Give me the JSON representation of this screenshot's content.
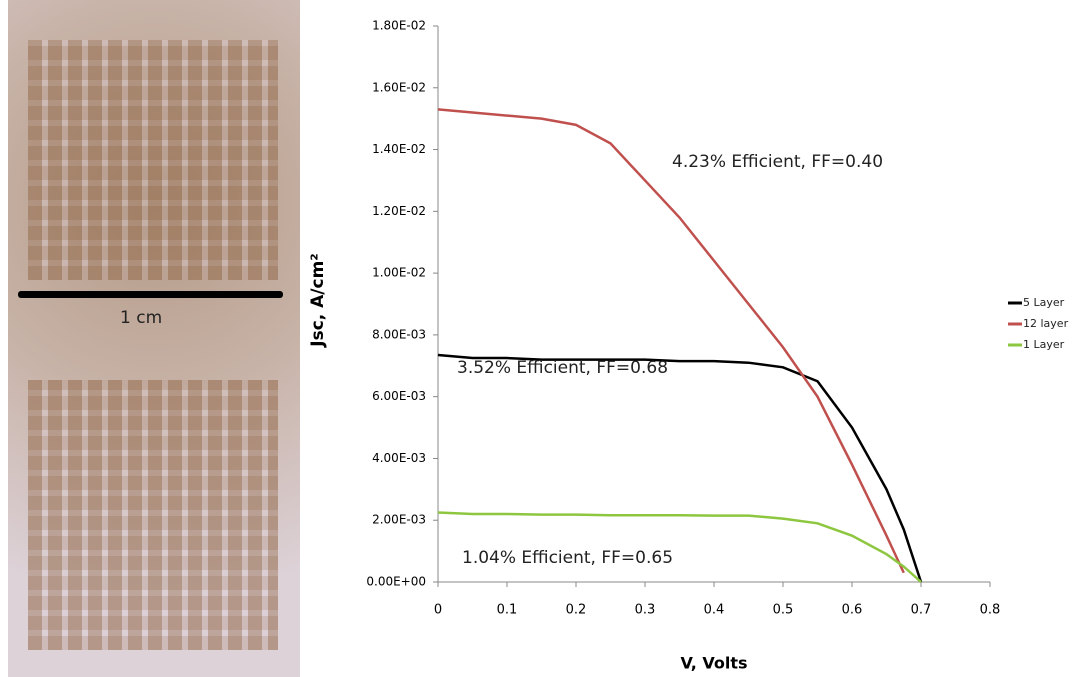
{
  "photo": {
    "scale_label": "1 cm"
  },
  "chart_data": {
    "type": "line",
    "y_label": "Jsc, A/cm²",
    "x_label": "V, Volts",
    "x": [
      0,
      0.05,
      0.1,
      0.15,
      0.2,
      0.25,
      0.3,
      0.35,
      0.4,
      0.45,
      0.5,
      0.55,
      0.6,
      0.65,
      0.675,
      0.7
    ],
    "series": [
      {
        "name": "5 Layer",
        "color": "#000000",
        "values": [
          0.00735,
          0.00725,
          0.00725,
          0.0072,
          0.0072,
          0.0072,
          0.0072,
          0.00715,
          0.00715,
          0.0071,
          0.00695,
          0.0065,
          0.005,
          0.003,
          0.0017,
          0
        ]
      },
      {
        "name": "12 layer",
        "color": "#c0504d",
        "values": [
          0.0153,
          0.0152,
          0.0151,
          0.015,
          0.0148,
          0.0142,
          0.013,
          0.0118,
          0.0104,
          0.009,
          0.0076,
          0.006,
          0.0038,
          0.0015,
          0.0003,
          null
        ]
      },
      {
        "name": "1 Layer",
        "color": "#8dc63f",
        "values": [
          0.00225,
          0.0022,
          0.0022,
          0.00218,
          0.00218,
          0.00216,
          0.00216,
          0.00216,
          0.00215,
          0.00215,
          0.00205,
          0.0019,
          0.0015,
          0.0009,
          0.0005,
          0
        ]
      }
    ],
    "annotations": [
      "4.23% Efficient, FF=0.40",
      "3.52% Efficient, FF=0.68",
      "1.04% Efficient, FF=0.65"
    ],
    "xlim": [
      0,
      0.8
    ],
    "xticks": [
      0,
      0.1,
      0.2,
      0.3,
      0.4,
      0.5,
      0.6,
      0.7,
      0.8
    ],
    "ylim": [
      0,
      0.018
    ],
    "yticks": [
      {
        "value": 0,
        "label": "0.00E+00"
      },
      {
        "value": 0.002,
        "label": "2.00E-03"
      },
      {
        "value": 0.004,
        "label": "4.00E-03"
      },
      {
        "value": 0.006,
        "label": "6.00E-03"
      },
      {
        "value": 0.008,
        "label": "8.00E-03"
      },
      {
        "value": 0.01,
        "label": "1.00E-02"
      },
      {
        "value": 0.012,
        "label": "1.20E-02"
      },
      {
        "value": 0.014,
        "label": "1.40E-02"
      },
      {
        "value": 0.016,
        "label": "1.60E-02"
      },
      {
        "value": 0.018,
        "label": "1.80E-02"
      }
    ],
    "legend": "right"
  }
}
